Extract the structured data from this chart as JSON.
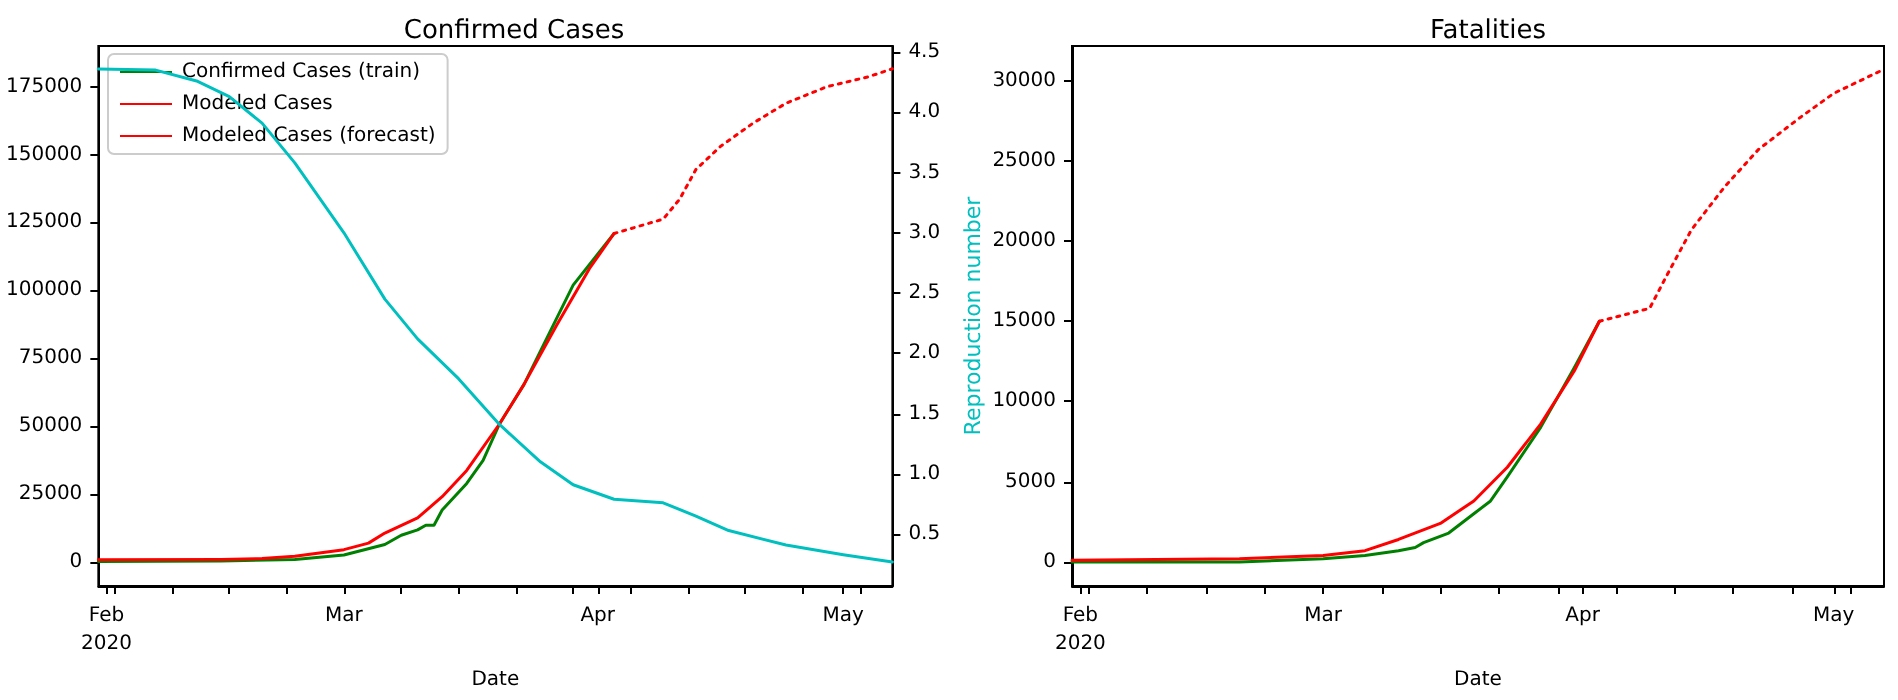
{
  "chart_data": [
    {
      "type": "line",
      "title": "Confirmed Cases",
      "xlabel": "Date",
      "y2label": "Reproduction number",
      "legend": "top left",
      "grid": false,
      "xlim": [
        "2020-01-31",
        "2020-05-07"
      ],
      "xticks": [
        {
          "value": "2020-02-01",
          "label": "Feb\n2020"
        },
        {
          "value": "2020-03-01",
          "label": "Mar"
        },
        {
          "value": "2020-04-01",
          "label": "Apr"
        },
        {
          "value": "2020-05-01",
          "label": "May"
        },
        {
          "value": "2020-02-02",
          "label": null
        },
        {
          "value": "2020-02-09",
          "label": null
        },
        {
          "value": "2020-02-16",
          "label": null
        },
        {
          "value": "2020-02-23",
          "label": null
        },
        {
          "value": "2020-03-08",
          "label": null
        },
        {
          "value": "2020-03-15",
          "label": null
        },
        {
          "value": "2020-03-22",
          "label": null
        },
        {
          "value": "2020-03-29",
          "label": null
        },
        {
          "value": "2020-04-05",
          "label": null
        },
        {
          "value": "2020-04-12",
          "label": null
        },
        {
          "value": "2020-04-19",
          "label": null
        },
        {
          "value": "2020-04-26",
          "label": null
        },
        {
          "value": "2020-05-03",
          "label": null
        }
      ],
      "ylim": [
        -9000,
        190000
      ],
      "yticks": [
        0,
        25000,
        50000,
        75000,
        100000,
        125000,
        150000,
        175000
      ],
      "y2lim": [
        0.07,
        4.55
      ],
      "y2ticks": [
        0.5,
        {
          "value": 1,
          "label": "1.0"
        },
        1.5,
        {
          "value": 2,
          "label": "2.0"
        },
        2.5,
        {
          "value": 3,
          "label": "3.0"
        },
        3.5,
        {
          "value": 4,
          "label": "4.0"
        },
        4.5
      ],
      "series": [
        {
          "name": "Confirmed Cases (train)",
          "color": "#008000",
          "line_style": "solid",
          "x": [
            "2020-01-31",
            "2020-02-15",
            "2020-02-24",
            "2020-03-01",
            "2020-03-06",
            "2020-03-08",
            "2020-03-10",
            "2020-03-11",
            "2020-03-12",
            "2020-03-13",
            "2020-03-16",
            "2020-03-18",
            "2020-03-20",
            "2020-03-23",
            "2020-03-27",
            "2020-03-29",
            "2020-04-03"
          ],
          "values": [
            0,
            200,
            800,
            2400,
            6300,
            9700,
            11700,
            13400,
            13400,
            19000,
            28800,
            37300,
            50700,
            65300,
            89700,
            101900,
            120900
          ]
        },
        {
          "name": "Modeled Cases",
          "color": "#ff0000",
          "line_style": "solid",
          "x": [
            "2020-01-31",
            "2020-02-15",
            "2020-02-20",
            "2020-02-24",
            "2020-03-01",
            "2020-03-04",
            "2020-03-06",
            "2020-03-10",
            "2020-03-13",
            "2020-03-16",
            "2020-03-20",
            "2020-03-23",
            "2020-03-27",
            "2020-03-31",
            "2020-04-03"
          ],
          "values": [
            700,
            800,
            1100,
            2000,
            4400,
            6800,
            10500,
            16100,
            23900,
            33600,
            50700,
            65300,
            87200,
            108000,
            120900
          ]
        },
        {
          "name": "Modeled Cases (forecast)",
          "color": "#ff0000",
          "line_style": "dotted",
          "x": [
            "2020-04-03",
            "2020-04-09",
            "2020-04-11",
            "2020-04-13",
            "2020-04-16",
            "2020-04-20",
            "2020-04-24",
            "2020-04-29",
            "2020-05-04",
            "2020-05-07"
          ],
          "values": [
            120900,
            126200,
            133500,
            144500,
            153000,
            161600,
            168900,
            175000,
            178600,
            181600
          ]
        },
        {
          "color": "#00bfbf",
          "line_style": "solid",
          "axis": "y2",
          "x": [
            "2020-01-31",
            "2020-02-07",
            "2020-02-12",
            "2020-02-16",
            "2020-02-20",
            "2020-02-24",
            "2020-03-01",
            "2020-03-06",
            "2020-03-10",
            "2020-03-15",
            "2020-03-20",
            "2020-03-25",
            "2020-03-29",
            "2020-04-03",
            "2020-04-09",
            "2020-04-13",
            "2020-04-17",
            "2020-04-24",
            "2020-05-01",
            "2020-05-07"
          ],
          "values": [
            4.36,
            4.35,
            4.26,
            4.13,
            3.91,
            3.58,
            3.0,
            2.45,
            2.12,
            1.79,
            1.41,
            1.1,
            0.91,
            0.79,
            0.76,
            0.65,
            0.53,
            0.41,
            0.33,
            0.27
          ]
        }
      ]
    },
    {
      "type": "line",
      "title": "Fatalities",
      "xlabel": "Date",
      "legend": false,
      "grid": false,
      "xlim": [
        "2020-01-31",
        "2020-05-07"
      ],
      "xticks": [
        {
          "value": "2020-02-01",
          "label": "Feb\n2020"
        },
        {
          "value": "2020-03-01",
          "label": "Mar"
        },
        {
          "value": "2020-04-01",
          "label": "Apr"
        },
        {
          "value": "2020-05-01",
          "label": "May"
        },
        {
          "value": "2020-02-02",
          "label": null
        },
        {
          "value": "2020-02-09",
          "label": null
        },
        {
          "value": "2020-02-16",
          "label": null
        },
        {
          "value": "2020-02-23",
          "label": null
        },
        {
          "value": "2020-03-08",
          "label": null
        },
        {
          "value": "2020-03-15",
          "label": null
        },
        {
          "value": "2020-03-22",
          "label": null
        },
        {
          "value": "2020-03-29",
          "label": null
        },
        {
          "value": "2020-04-05",
          "label": null
        },
        {
          "value": "2020-04-12",
          "label": null
        },
        {
          "value": "2020-04-19",
          "label": null
        },
        {
          "value": "2020-04-26",
          "label": null
        },
        {
          "value": "2020-05-03",
          "label": null
        }
      ],
      "ylim": [
        -1500,
        32150
      ],
      "yticks": [
        0,
        5000,
        10000,
        15000,
        20000,
        25000,
        30000
      ],
      "series": [
        {
          "color": "#008000",
          "line_style": "solid",
          "x": [
            "2020-01-31",
            "2020-02-20",
            "2020-03-01",
            "2020-03-06",
            "2020-03-10",
            "2020-03-12",
            "2020-03-13",
            "2020-03-16",
            "2020-03-19",
            "2020-03-21",
            "2020-03-23",
            "2020-03-27",
            "2020-03-31",
            "2020-04-03"
          ],
          "values": [
            0,
            0,
            200,
            400,
            700,
            900,
            1200,
            1800,
            3000,
            3800,
            5300,
            8400,
            12100,
            15000
          ]
        },
        {
          "color": "#ff0000",
          "line_style": "solid",
          "x": [
            "2020-01-31",
            "2020-02-20",
            "2020-03-01",
            "2020-03-06",
            "2020-03-10",
            "2020-03-15",
            "2020-03-19",
            "2020-03-23",
            "2020-03-27",
            "2020-03-31",
            "2020-04-03"
          ],
          "values": [
            100,
            200,
            400,
            700,
            1400,
            2400,
            3800,
            5900,
            8600,
            11900,
            15000
          ]
        },
        {
          "color": "#ff0000",
          "line_style": "dotted",
          "x": [
            "2020-04-03",
            "2020-04-09",
            "2020-04-11",
            "2020-04-14",
            "2020-04-18",
            "2020-04-22",
            "2020-04-27",
            "2020-05-01",
            "2020-05-07"
          ],
          "values": [
            15000,
            15800,
            17800,
            20700,
            23400,
            25700,
            27700,
            29200,
            30700
          ]
        }
      ]
    }
  ]
}
